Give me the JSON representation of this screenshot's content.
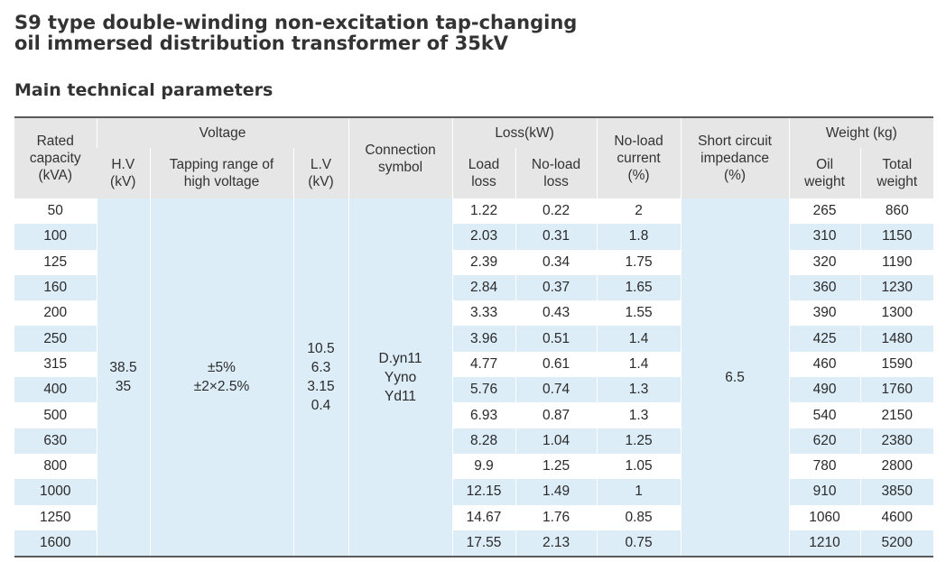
{
  "title": {
    "line1": "S9 type double-winding non-excitation tap-changing",
    "line2": "oil immersed distribution transformer of 35kV"
  },
  "subtitle": "Main technical parameters",
  "headers": {
    "rated_capacity": [
      "Rated",
      "capacity",
      "(kVA)"
    ],
    "voltage": "Voltage",
    "hv": [
      "H.V",
      "(kV)"
    ],
    "tapping": [
      "Tapping range of",
      "high voltage"
    ],
    "lv": [
      "L.V",
      "(kV)"
    ],
    "connection": [
      "Connection",
      "symbol"
    ],
    "loss": "Loss(kW)",
    "load_loss": [
      "Load",
      "loss"
    ],
    "noload_loss": [
      "No-load",
      "loss"
    ],
    "noload_current": [
      "No-load",
      "current",
      "(%)"
    ],
    "short_circuit": [
      "Short circuit",
      "impedance",
      "(%)"
    ],
    "weight": "Weight (kg)",
    "oil_weight": [
      "Oil",
      "weight"
    ],
    "total_weight": [
      "Total",
      "weight"
    ]
  },
  "merged": {
    "hv": [
      "38.5",
      "35"
    ],
    "tapping": [
      "±5%",
      "±2×2.5%"
    ],
    "lv": [
      "10.5",
      "6.3",
      "3.15",
      "0.4"
    ],
    "connection": [
      "D.yn11",
      "Yyno",
      "Yd11"
    ],
    "short_circuit": "6.5"
  },
  "rows": [
    {
      "capacity": "50",
      "load_loss": "1.22",
      "noload_loss": "0.22",
      "noload_current": "2",
      "oil_weight": "265",
      "total_weight": "860"
    },
    {
      "capacity": "100",
      "load_loss": "2.03",
      "noload_loss": "0.31",
      "noload_current": "1.8",
      "oil_weight": "310",
      "total_weight": "1150"
    },
    {
      "capacity": "125",
      "load_loss": "2.39",
      "noload_loss": "0.34",
      "noload_current": "1.75",
      "oil_weight": "320",
      "total_weight": "1190"
    },
    {
      "capacity": "160",
      "load_loss": "2.84",
      "noload_loss": "0.37",
      "noload_current": "1.65",
      "oil_weight": "360",
      "total_weight": "1230"
    },
    {
      "capacity": "200",
      "load_loss": "3.33",
      "noload_loss": "0.43",
      "noload_current": "1.55",
      "oil_weight": "390",
      "total_weight": "1300"
    },
    {
      "capacity": "250",
      "load_loss": "3.96",
      "noload_loss": "0.51",
      "noload_current": "1.4",
      "oil_weight": "425",
      "total_weight": "1480"
    },
    {
      "capacity": "315",
      "load_loss": "4.77",
      "noload_loss": "0.61",
      "noload_current": "1.4",
      "oil_weight": "460",
      "total_weight": "1590"
    },
    {
      "capacity": "400",
      "load_loss": "5.76",
      "noload_loss": "0.74",
      "noload_current": "1.3",
      "oil_weight": "490",
      "total_weight": "1760"
    },
    {
      "capacity": "500",
      "load_loss": "6.93",
      "noload_loss": "0.87",
      "noload_current": "1.3",
      "oil_weight": "540",
      "total_weight": "2150"
    },
    {
      "capacity": "630",
      "load_loss": "8.28",
      "noload_loss": "1.04",
      "noload_current": "1.25",
      "oil_weight": "620",
      "total_weight": "2380"
    },
    {
      "capacity": "800",
      "load_loss": "9.9",
      "noload_loss": "1.25",
      "noload_current": "1.05",
      "oil_weight": "780",
      "total_weight": "2800"
    },
    {
      "capacity": "1000",
      "load_loss": "12.15",
      "noload_loss": "1.49",
      "noload_current": "1",
      "oil_weight": "910",
      "total_weight": "3850"
    },
    {
      "capacity": "1250",
      "load_loss": "14.67",
      "noload_loss": "1.76",
      "noload_current": "0.85",
      "oil_weight": "1060",
      "total_weight": "4600"
    },
    {
      "capacity": "1600",
      "load_loss": "17.55",
      "noload_loss": "2.13",
      "noload_current": "0.75",
      "oil_weight": "1210",
      "total_weight": "5200"
    }
  ],
  "colors": {
    "header_bg": "#e6e6e6",
    "stripe_bg": "#dcedf8",
    "rule": "#5a5a5a"
  }
}
